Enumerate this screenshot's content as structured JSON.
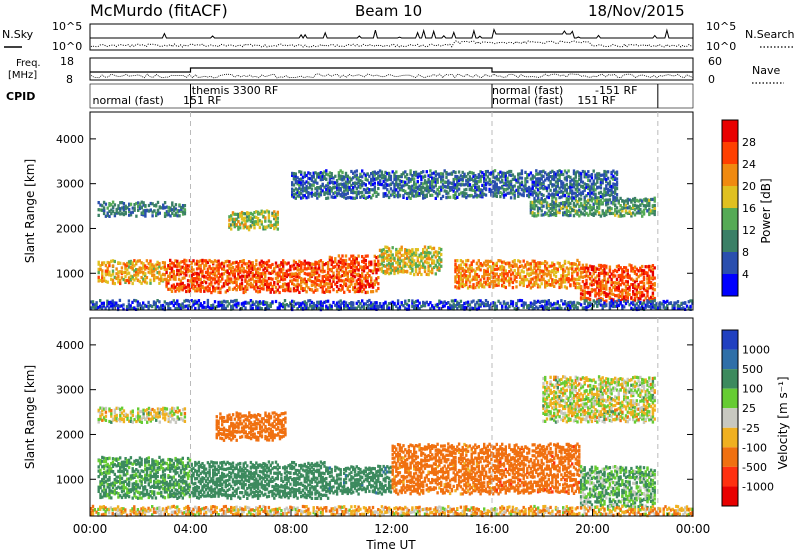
{
  "header": {
    "station": "McMurdo (fitACF)",
    "beam": "Beam 10",
    "date": "18/Nov/2015"
  },
  "noise_panel": {
    "left_label": "N.Sky",
    "right_label": "N.Search",
    "left_ticks": [
      "10^5",
      "10^0"
    ],
    "right_ticks": [
      "10^5",
      "10^0"
    ]
  },
  "freq_panel": {
    "left_label_1": "Freq.",
    "left_label_2": "[MHz]",
    "right_label": "Nave",
    "left_ticks": [
      "18",
      "8"
    ],
    "right_ticks": [
      "60",
      "0"
    ]
  },
  "cpid": {
    "label": "CPID",
    "segments": [
      {
        "text": "normal (fast)",
        "x_hour": 0.1,
        "row": 1
      },
      {
        "text": "151 RF",
        "x_hour": 3.7,
        "row": 1
      },
      {
        "text": "themis 3300 RF",
        "x_hour": 4.05,
        "row": 0
      },
      {
        "text": "normal (fast)",
        "x_hour": 16.0,
        "row": 0
      },
      {
        "text": "-151 RF",
        "x_hour": 20.1,
        "row": 0
      },
      {
        "text": "normal (fast)",
        "x_hour": 16.0,
        "row": 1
      },
      {
        "text": "151 RF",
        "x_hour": 19.4,
        "row": 1
      }
    ],
    "boundaries_hours": [
      4.0,
      16.0,
      22.6
    ]
  },
  "power_colorbar": {
    "label": "Power [dB]",
    "ticks": [
      "4",
      "8",
      "12",
      "16",
      "20",
      "24",
      "28"
    ],
    "colors": [
      "#0000ff",
      "#2a4fae",
      "#3a7f66",
      "#55aa55",
      "#e0c020",
      "#f08a10",
      "#ff4000",
      "#e80000"
    ]
  },
  "velocity_colorbar": {
    "label": "Velocity [m s⁻¹]",
    "ticks": [
      "1000",
      "500",
      "100",
      "25",
      "-25",
      "-100",
      "-500",
      "-1000"
    ],
    "colors": [
      "#2040c0",
      "#2f6fa8",
      "#3c8a5e",
      "#66cc33",
      "#c8c8c0",
      "#f0b020",
      "#f07010",
      "#ff3010",
      "#e80000"
    ]
  },
  "chart_data": [
    {
      "type": "heatmap",
      "panel": "power",
      "ylabel": "Slant Range [km]",
      "y_ticks": [
        1000,
        2000,
        3000,
        4000
      ],
      "ylim": [
        180,
        4600
      ],
      "xlim": [
        0,
        24
      ],
      "x_ticks_hours": [
        0,
        4,
        8,
        12,
        16,
        20,
        24
      ],
      "features": [
        {
          "hours": [
            0.3,
            3.8
          ],
          "range_km": [
            2300,
            2600
          ],
          "power_db": 9
        },
        {
          "hours": [
            0.3,
            3.0
          ],
          "range_km": [
            800,
            1300
          ],
          "power_db": 20
        },
        {
          "hours": [
            3.0,
            9.5
          ],
          "range_km": [
            600,
            1300
          ],
          "power_db": 25
        },
        {
          "hours": [
            5.5,
            7.5
          ],
          "range_km": [
            2000,
            2400
          ],
          "power_db": 16
        },
        {
          "hours": [
            9.5,
            11.5
          ],
          "range_km": [
            600,
            1400
          ],
          "power_db": 26
        },
        {
          "hours": [
            11.5,
            14.0
          ],
          "range_km": [
            1000,
            1600
          ],
          "power_db": 18
        },
        {
          "hours": [
            14.5,
            19.5
          ],
          "range_km": [
            700,
            1300
          ],
          "power_db": 22
        },
        {
          "hours": [
            19.5,
            22.5
          ],
          "range_km": [
            400,
            1200
          ],
          "power_db": 26
        },
        {
          "hours": [
            17.5,
            22.5
          ],
          "range_km": [
            2300,
            2700
          ],
          "power_db": 12
        },
        {
          "hours": [
            8.0,
            21.0
          ],
          "range_km": [
            2700,
            3300
          ],
          "power_db": 8
        },
        {
          "hours": [
            0.0,
            24.0
          ],
          "range_km": [
            180,
            400
          ],
          "power_db": 6
        }
      ]
    },
    {
      "type": "heatmap",
      "panel": "velocity",
      "ylabel": "Slant Range [km]",
      "xlabel": "Time UT",
      "y_ticks": [
        1000,
        2000,
        3000,
        4000
      ],
      "ylim": [
        180,
        4600
      ],
      "xlim": [
        0,
        24
      ],
      "x_tick_labels": [
        "00:00",
        "04:00",
        "08:00",
        "12:00",
        "16:00",
        "20:00",
        "00:00"
      ],
      "features": [
        {
          "hours": [
            0.3,
            3.8
          ],
          "range_km": [
            2300,
            2600
          ],
          "velocity": 0
        },
        {
          "hours": [
            0.3,
            4.0
          ],
          "range_km": [
            600,
            1500
          ],
          "velocity": 150
        },
        {
          "hours": [
            4.0,
            9.5
          ],
          "range_km": [
            600,
            1400
          ],
          "velocity": 300
        },
        {
          "hours": [
            5.0,
            7.8
          ],
          "range_km": [
            1900,
            2500
          ],
          "velocity": -300
        },
        {
          "hours": [
            9.5,
            12.0
          ],
          "range_km": [
            700,
            1300
          ],
          "velocity": 400
        },
        {
          "hours": [
            12.0,
            16.0
          ],
          "range_km": [
            700,
            1800
          ],
          "velocity": -200
        },
        {
          "hours": [
            16.0,
            19.5
          ],
          "range_km": [
            700,
            1800
          ],
          "velocity": -400
        },
        {
          "hours": [
            19.5,
            22.5
          ],
          "range_km": [
            400,
            1300
          ],
          "velocity": 100
        },
        {
          "hours": [
            18.0,
            22.5
          ],
          "range_km": [
            2300,
            3300
          ],
          "velocity": 0
        },
        {
          "hours": [
            0.0,
            24.0
          ],
          "range_km": [
            180,
            400
          ],
          "velocity": -60
        }
      ]
    }
  ],
  "x_axis": {
    "label": "Time UT",
    "tick_labels": [
      "00:00",
      "04:00",
      "08:00",
      "12:00",
      "16:00",
      "20:00",
      "00:00"
    ]
  }
}
